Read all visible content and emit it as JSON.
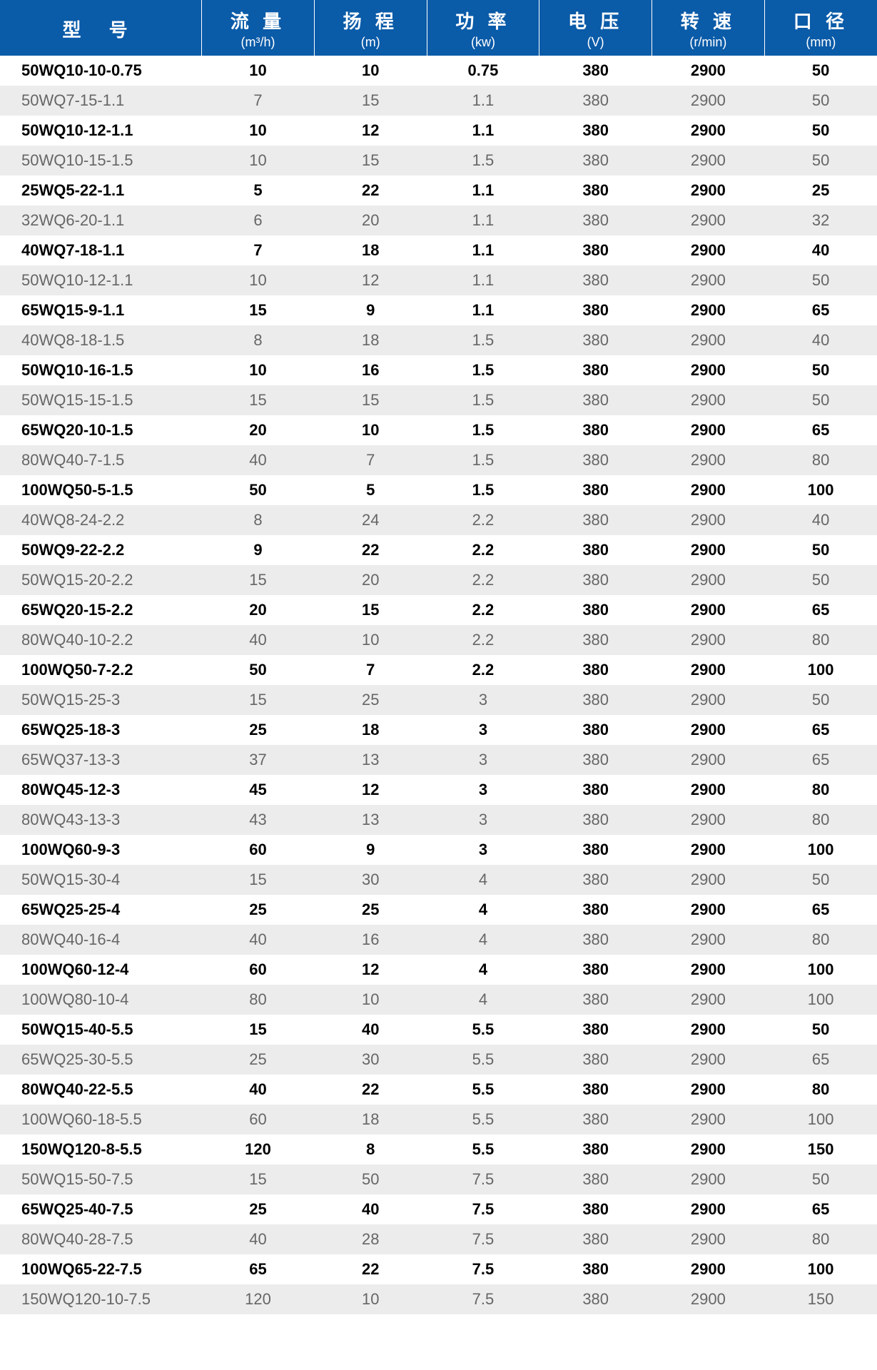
{
  "table": {
    "type": "table",
    "header_bg": "#0a5ba8",
    "header_fg": "#ffffff",
    "row_bg_odd": "#ffffff",
    "row_bg_even": "#ececec",
    "bold_color": "#000000",
    "light_color": "#666666",
    "columns": [
      {
        "label": "型 号",
        "unit": ""
      },
      {
        "label": "流 量",
        "unit": "(m³/h)"
      },
      {
        "label": "扬 程",
        "unit": "(m)"
      },
      {
        "label": "功 率",
        "unit": "(kw)"
      },
      {
        "label": "电 压",
        "unit": "(V)"
      },
      {
        "label": "转 速",
        "unit": "(r/min)"
      },
      {
        "label": "口 径",
        "unit": "(mm)"
      }
    ],
    "rows": [
      {
        "bold": true,
        "cells": [
          "50WQ10-10-0.75",
          "10",
          "10",
          "0.75",
          "380",
          "2900",
          "50"
        ]
      },
      {
        "bold": false,
        "cells": [
          "50WQ7-15-1.1",
          "7",
          "15",
          "1.1",
          "380",
          "2900",
          "50"
        ]
      },
      {
        "bold": true,
        "cells": [
          "50WQ10-12-1.1",
          "10",
          "12",
          "1.1",
          "380",
          "2900",
          "50"
        ]
      },
      {
        "bold": false,
        "cells": [
          "50WQ10-15-1.5",
          "10",
          "15",
          "1.5",
          "380",
          "2900",
          "50"
        ]
      },
      {
        "bold": true,
        "cells": [
          "25WQ5-22-1.1",
          "5",
          "22",
          "1.1",
          "380",
          "2900",
          "25"
        ]
      },
      {
        "bold": false,
        "cells": [
          "32WQ6-20-1.1",
          "6",
          "20",
          "1.1",
          "380",
          "2900",
          "32"
        ]
      },
      {
        "bold": true,
        "cells": [
          "40WQ7-18-1.1",
          "7",
          "18",
          "1.1",
          "380",
          "2900",
          "40"
        ]
      },
      {
        "bold": false,
        "cells": [
          "50WQ10-12-1.1",
          "10",
          "12",
          "1.1",
          "380",
          "2900",
          "50"
        ]
      },
      {
        "bold": true,
        "cells": [
          "65WQ15-9-1.1",
          "15",
          "9",
          "1.1",
          "380",
          "2900",
          "65"
        ]
      },
      {
        "bold": false,
        "cells": [
          "40WQ8-18-1.5",
          "8",
          "18",
          "1.5",
          "380",
          "2900",
          "40"
        ]
      },
      {
        "bold": true,
        "cells": [
          "50WQ10-16-1.5",
          "10",
          "16",
          "1.5",
          "380",
          "2900",
          "50"
        ]
      },
      {
        "bold": false,
        "cells": [
          "50WQ15-15-1.5",
          "15",
          "15",
          "1.5",
          "380",
          "2900",
          "50"
        ]
      },
      {
        "bold": true,
        "cells": [
          "65WQ20-10-1.5",
          "20",
          "10",
          "1.5",
          "380",
          "2900",
          "65"
        ]
      },
      {
        "bold": false,
        "cells": [
          "80WQ40-7-1.5",
          "40",
          "7",
          "1.5",
          "380",
          "2900",
          "80"
        ]
      },
      {
        "bold": true,
        "cells": [
          "100WQ50-5-1.5",
          "50",
          "5",
          "1.5",
          "380",
          "2900",
          "100"
        ]
      },
      {
        "bold": false,
        "cells": [
          "40WQ8-24-2.2",
          "8",
          "24",
          "2.2",
          "380",
          "2900",
          "40"
        ]
      },
      {
        "bold": true,
        "cells": [
          "50WQ9-22-2.2",
          "9",
          "22",
          "2.2",
          "380",
          "2900",
          "50"
        ]
      },
      {
        "bold": false,
        "cells": [
          "50WQ15-20-2.2",
          "15",
          "20",
          "2.2",
          "380",
          "2900",
          "50"
        ]
      },
      {
        "bold": true,
        "cells": [
          "65WQ20-15-2.2",
          "20",
          "15",
          "2.2",
          "380",
          "2900",
          "65"
        ]
      },
      {
        "bold": false,
        "cells": [
          "80WQ40-10-2.2",
          "40",
          "10",
          "2.2",
          "380",
          "2900",
          "80"
        ]
      },
      {
        "bold": true,
        "cells": [
          "100WQ50-7-2.2",
          "50",
          "7",
          "2.2",
          "380",
          "2900",
          "100"
        ]
      },
      {
        "bold": false,
        "cells": [
          "50WQ15-25-3",
          "15",
          "25",
          "3",
          "380",
          "2900",
          "50"
        ]
      },
      {
        "bold": true,
        "cells": [
          "65WQ25-18-3",
          "25",
          "18",
          "3",
          "380",
          "2900",
          "65"
        ]
      },
      {
        "bold": false,
        "cells": [
          "65WQ37-13-3",
          "37",
          "13",
          "3",
          "380",
          "2900",
          "65"
        ]
      },
      {
        "bold": true,
        "cells": [
          "80WQ45-12-3",
          "45",
          "12",
          "3",
          "380",
          "2900",
          "80"
        ]
      },
      {
        "bold": false,
        "cells": [
          "80WQ43-13-3",
          "43",
          "13",
          "3",
          "380",
          "2900",
          "80"
        ]
      },
      {
        "bold": true,
        "cells": [
          "100WQ60-9-3",
          "60",
          "9",
          "3",
          "380",
          "2900",
          "100"
        ]
      },
      {
        "bold": false,
        "cells": [
          "50WQ15-30-4",
          "15",
          "30",
          "4",
          "380",
          "2900",
          "50"
        ]
      },
      {
        "bold": true,
        "cells": [
          "65WQ25-25-4",
          "25",
          "25",
          "4",
          "380",
          "2900",
          "65"
        ]
      },
      {
        "bold": false,
        "cells": [
          "80WQ40-16-4",
          "40",
          "16",
          "4",
          "380",
          "2900",
          "80"
        ]
      },
      {
        "bold": true,
        "cells": [
          "100WQ60-12-4",
          "60",
          "12",
          "4",
          "380",
          "2900",
          "100"
        ]
      },
      {
        "bold": false,
        "cells": [
          "100WQ80-10-4",
          "80",
          "10",
          "4",
          "380",
          "2900",
          "100"
        ]
      },
      {
        "bold": true,
        "cells": [
          "50WQ15-40-5.5",
          "15",
          "40",
          "5.5",
          "380",
          "2900",
          "50"
        ]
      },
      {
        "bold": false,
        "cells": [
          "65WQ25-30-5.5",
          "25",
          "30",
          "5.5",
          "380",
          "2900",
          "65"
        ]
      },
      {
        "bold": true,
        "cells": [
          "80WQ40-22-5.5",
          "40",
          "22",
          "5.5",
          "380",
          "2900",
          "80"
        ]
      },
      {
        "bold": false,
        "cells": [
          "100WQ60-18-5.5",
          "60",
          "18",
          "5.5",
          "380",
          "2900",
          "100"
        ]
      },
      {
        "bold": true,
        "cells": [
          "150WQ120-8-5.5",
          "120",
          "8",
          "5.5",
          "380",
          "2900",
          "150"
        ]
      },
      {
        "bold": false,
        "cells": [
          "50WQ15-50-7.5",
          "15",
          "50",
          "7.5",
          "380",
          "2900",
          "50"
        ]
      },
      {
        "bold": true,
        "cells": [
          "65WQ25-40-7.5",
          "25",
          "40",
          "7.5",
          "380",
          "2900",
          "65"
        ]
      },
      {
        "bold": false,
        "cells": [
          "80WQ40-28-7.5",
          "40",
          "28",
          "7.5",
          "380",
          "2900",
          "80"
        ]
      },
      {
        "bold": true,
        "cells": [
          "100WQ65-22-7.5",
          "65",
          "22",
          "7.5",
          "380",
          "2900",
          "100"
        ]
      },
      {
        "bold": false,
        "cells": [
          "150WQ120-10-7.5",
          "120",
          "10",
          "7.5",
          "380",
          "2900",
          "150"
        ]
      }
    ]
  }
}
